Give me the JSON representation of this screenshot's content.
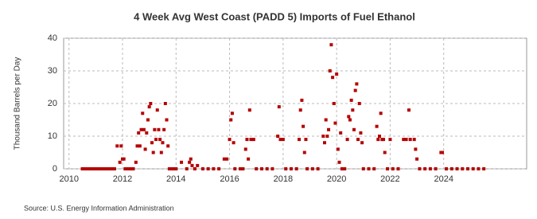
{
  "chart_data": {
    "type": "scatter",
    "title": "4 Week Avg West Coast (PADD 5) Imports of Fuel Ethanol",
    "y_label": "Thousand Barrels per Day",
    "source": "Source: U.S. Energy Information Administration",
    "color": "#b50000",
    "grid": true,
    "xlim": [
      2009.8,
      2027.1
    ],
    "xticks": [
      2010,
      2012,
      2014,
      2016,
      2018,
      2020,
      2022,
      2024
    ],
    "ylim": [
      0,
      40
    ],
    "yticks": [
      0,
      10,
      20,
      30,
      40
    ],
    "x": [
      2010.5,
      2010.6,
      2010.7,
      2010.8,
      2010.9,
      2011.0,
      2011.1,
      2011.2,
      2011.3,
      2011.4,
      2011.5,
      2011.6,
      2011.7,
      2011.8,
      2011.9,
      2011.95,
      2012.0,
      2012.05,
      2012.1,
      2012.2,
      2012.3,
      2012.4,
      2012.5,
      2012.55,
      2012.6,
      2012.65,
      2012.7,
      2012.75,
      2012.8,
      2012.85,
      2012.9,
      2012.95,
      2013.0,
      2013.05,
      2013.1,
      2013.15,
      2013.2,
      2013.25,
      2013.3,
      2013.35,
      2013.4,
      2013.45,
      2013.5,
      2013.55,
      2013.6,
      2013.65,
      2013.7,
      2013.75,
      2013.8,
      2013.9,
      2014.0,
      2014.2,
      2014.4,
      2014.5,
      2014.55,
      2014.6,
      2014.7,
      2014.8,
      2015.0,
      2015.2,
      2015.4,
      2015.6,
      2015.8,
      2015.9,
      2016.0,
      2016.05,
      2016.1,
      2016.15,
      2016.2,
      2016.4,
      2016.5,
      2016.6,
      2016.65,
      2016.7,
      2016.75,
      2016.8,
      2016.9,
      2017.0,
      2017.2,
      2017.4,
      2017.6,
      2017.8,
      2017.85,
      2017.9,
      2018.0,
      2018.1,
      2018.3,
      2018.5,
      2018.6,
      2018.65,
      2018.7,
      2018.75,
      2018.8,
      2018.85,
      2018.9,
      2019.1,
      2019.3,
      2019.5,
      2019.55,
      2019.6,
      2019.65,
      2019.7,
      2019.75,
      2019.8,
      2019.85,
      2019.9,
      2019.95,
      2020.0,
      2020.05,
      2020.1,
      2020.15,
      2020.2,
      2020.3,
      2020.4,
      2020.45,
      2020.5,
      2020.55,
      2020.6,
      2020.65,
      2020.7,
      2020.75,
      2020.8,
      2020.85,
      2020.9,
      2020.95,
      2021.0,
      2021.2,
      2021.4,
      2021.5,
      2021.55,
      2021.6,
      2021.65,
      2021.7,
      2021.75,
      2021.8,
      2021.9,
      2022.0,
      2022.1,
      2022.3,
      2022.5,
      2022.6,
      2022.7,
      2022.75,
      2022.9,
      2022.95,
      2023.0,
      2023.1,
      2023.3,
      2023.5,
      2023.7,
      2023.9,
      2023.95,
      2024.1,
      2024.3,
      2024.5,
      2024.7,
      2024.9,
      2025.1,
      2025.3,
      2025.5
    ],
    "values": [
      0,
      0,
      0,
      0,
      0,
      0,
      0,
      0,
      0,
      0,
      0,
      0,
      0,
      7,
      2,
      7,
      3,
      3,
      0,
      0,
      0,
      0,
      2,
      7,
      11,
      7,
      12,
      17,
      12,
      6,
      11,
      15,
      19,
      20,
      8,
      5,
      12,
      9,
      18,
      12,
      9,
      5,
      8,
      12,
      20,
      15,
      7,
      0,
      0,
      0,
      0,
      2,
      0,
      2,
      3,
      1,
      0,
      1,
      0,
      0,
      0,
      0,
      3,
      3,
      9,
      15,
      17,
      8,
      0,
      0,
      0,
      6,
      9,
      3,
      18,
      9,
      9,
      0,
      0,
      0,
      0,
      10,
      19,
      9,
      9,
      0,
      0,
      0,
      9,
      18,
      21,
      13,
      5,
      9,
      0,
      0,
      0,
      10,
      8,
      15,
      10,
      12,
      30,
      38,
      28,
      20,
      14,
      29,
      6,
      2,
      11,
      0,
      0,
      9,
      16,
      15,
      21,
      18,
      12,
      24,
      26,
      9,
      20,
      11,
      8,
      0,
      0,
      0,
      13,
      9,
      10,
      17,
      9,
      9,
      5,
      0,
      9,
      0,
      0,
      9,
      9,
      18,
      9,
      9,
      6,
      3,
      0,
      0,
      0,
      0,
      5,
      5,
      0,
      0,
      0,
      0,
      0,
      0,
      0,
      0
    ]
  }
}
